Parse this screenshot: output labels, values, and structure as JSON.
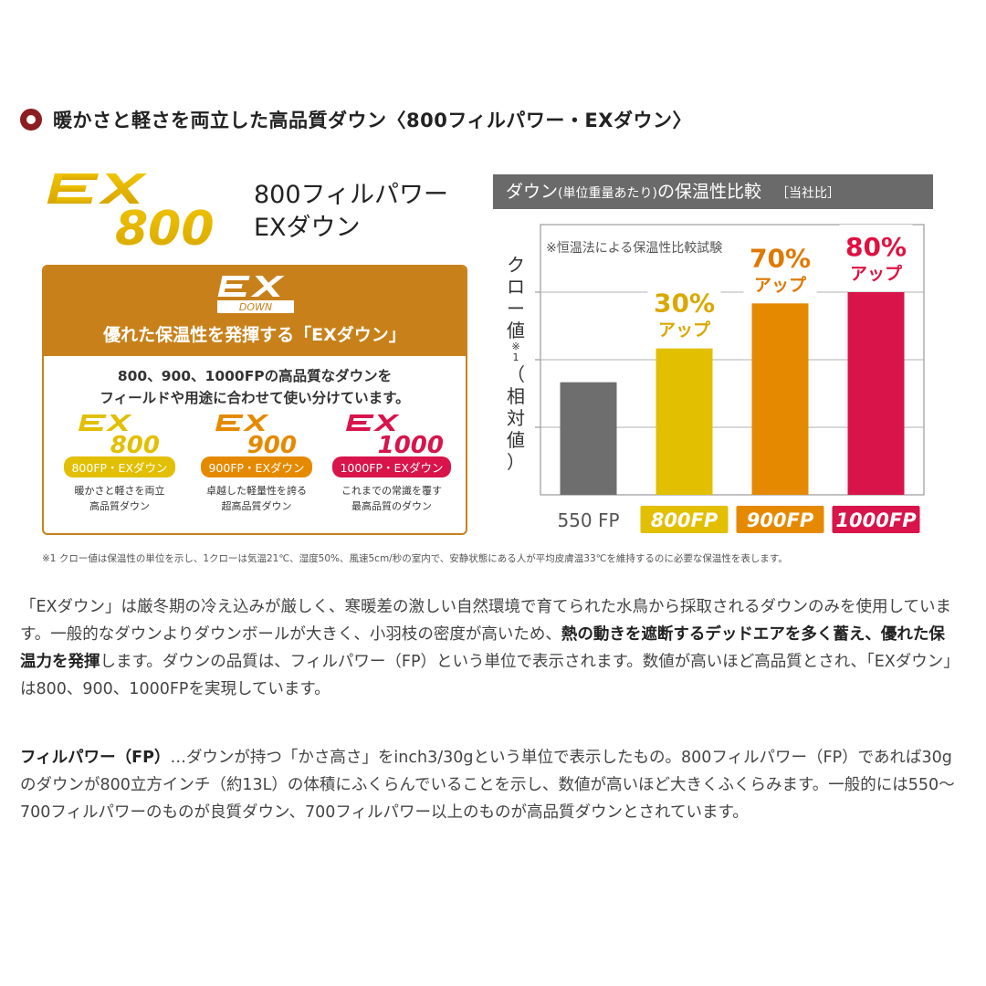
{
  "heading": {
    "text": "暖かさと軽さを両立した高品質ダウン〈800フィルパワー・EXダウン〉"
  },
  "logo": {
    "ex_text": "EX",
    "number": "800",
    "caption_line1": "800フィルパワー",
    "caption_line2": "EXダウン"
  },
  "panel": {
    "badge_ex": "EX",
    "badge_down": "DOWN",
    "title": "優れた保温性を発揮する「EXダウン」",
    "desc_line1": "800、900、1000FPの高品質なダウンを",
    "desc_line2": "フィールドや用途に合わせて使い分けています。",
    "grades": [
      {
        "ex": "EX",
        "number": "800",
        "pill": "800FP・EXダウン",
        "desc1": "暖かさと軽さを両立",
        "desc2": "高品質ダウン",
        "color": "#d9a800"
      },
      {
        "ex": "EX",
        "number": "900",
        "pill": "900FP・EXダウン",
        "desc1": "卓越した軽量性を誇る",
        "desc2": "超高品質ダウン",
        "color": "#e08a00"
      },
      {
        "ex": "EX",
        "number": "1000",
        "pill": "1000FP・EXダウン",
        "desc1": "これまでの常識を覆す",
        "desc2": "最高品質のダウン",
        "color": "#d2144a"
      }
    ]
  },
  "chart_header": {
    "title": "ダウン",
    "title_small": "(単位重量あたり)",
    "title_rest": "の保温性比較",
    "tag": "［当社比］"
  },
  "chart_data": {
    "type": "bar",
    "note": "※恒温法による保温性比較試験",
    "ylabel": "クロー値",
    "ylabel_sub": "※1",
    "ylabel_paren": "（相対値）",
    "categories": [
      "550 FP",
      "800FP",
      "900FP",
      "1000FP"
    ],
    "values": [
      100,
      130,
      170,
      180
    ],
    "annotations": [
      {
        "pct": "",
        "sub": ""
      },
      {
        "pct": "30%",
        "sub": "アップ"
      },
      {
        "pct": "70%",
        "sub": "アップ"
      },
      {
        "pct": "80%",
        "sub": "アップ"
      }
    ],
    "colors": [
      "#6e6e6e",
      "#e2bf00",
      "#e58a00",
      "#d8144a"
    ],
    "label_bg": [
      "",
      "#e2bf00",
      "#e58a00",
      "#d8144a"
    ],
    "annot_colors": [
      "",
      "#d9a800",
      "#e07800",
      "#e01040"
    ],
    "ylim": [
      0,
      240
    ],
    "grid": true
  },
  "footnote": "※1 クロー値は保温性の単位を示し、1クローは気温21℃、湿度50%、風速5cm/秒の室内で、安静状態にある人が平均皮膚温33℃を維持するのに必要な保温性を表します。",
  "para1": {
    "t1": "「EXダウン」は厳冬期の冷え込みが厳しく、寒暖差の激しい自然環境で育てられた水鳥から採取されるダウンのみを使用しています。一般的なダウンよりダウンボールが大きく、小羽枝の密度が高いため、",
    "b1": "熱の動きを遮断するデッドエアを多く蓄え、優れた保温力を発揮",
    "t2": "します。ダウンの品質は、フィルパワー（FP）という単位で表示されます。数値が高いほど高品質とされ、「EXダウン」は800、900、1000FPを実現しています。"
  },
  "para2": {
    "b1": "フィルパワー（FP）",
    "t1": "…ダウンが持つ「かさ高さ」をinch3/30gという単位で表示したもの。800フィルパワー（FP）であれば30gのダウンが800立方インチ（約13L）の体積にふくらんでいることを示し、数値が高いほど大きくふくらみます。一般的には550〜700フィルパワーのものが良質ダウン、700フィルパワー以上のものが高品質ダウンとされています。"
  }
}
